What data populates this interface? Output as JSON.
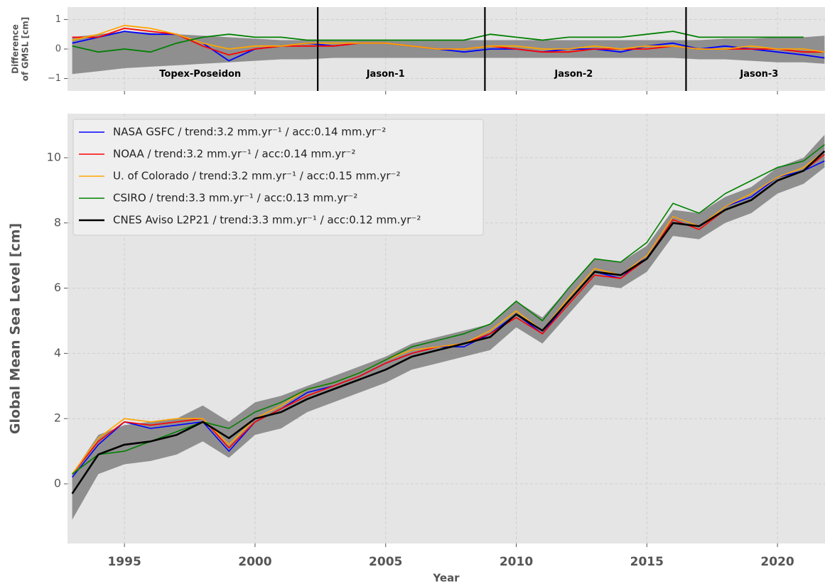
{
  "chart_data": [
    {
      "type": "line",
      "ylabel": [
        "Difference",
        "of GMSL [cm]"
      ],
      "x": [
        1993,
        1994,
        1995,
        1996,
        1997,
        1998,
        1999,
        2000,
        2001,
        2002,
        2003,
        2004,
        2005,
        2006,
        2007,
        2008,
        2009,
        2010,
        2011,
        2012,
        2013,
        2014,
        2015,
        2016,
        2017,
        2018,
        2019,
        2020,
        2021,
        2021.8
      ],
      "xlim": [
        1992.82,
        2021.82
      ],
      "xticks": [
        1995,
        2000,
        2005,
        2010,
        2015,
        2020
      ],
      "xtick_labels": false,
      "ylim": [
        -1.42,
        1.42
      ],
      "yticks": [
        {
          "value": -1,
          "label": "−1"
        },
        0,
        1
      ],
      "grid": true,
      "band": {
        "color": "#808080",
        "upper": [
          0.4,
          0.5,
          0.6,
          0.55,
          0.5,
          0.45,
          0.4,
          0.35,
          0.3,
          0.3,
          0.3,
          0.3,
          0.3,
          0.3,
          0.3,
          0.3,
          0.3,
          0.3,
          0.3,
          0.3,
          0.3,
          0.3,
          0.3,
          0.3,
          0.3,
          0.35,
          0.35,
          0.4,
          0.4,
          0.45
        ],
        "lower": [
          -0.85,
          -0.75,
          -0.65,
          -0.6,
          -0.55,
          -0.5,
          -0.45,
          -0.4,
          -0.35,
          -0.35,
          -0.3,
          -0.3,
          -0.3,
          -0.3,
          -0.3,
          -0.3,
          -0.3,
          -0.3,
          -0.3,
          -0.3,
          -0.3,
          -0.3,
          -0.3,
          -0.3,
          -0.35,
          -0.35,
          -0.4,
          -0.45,
          -0.45,
          -0.5
        ]
      },
      "series": [
        {
          "name": "NASA GSFC",
          "color": "#0000ff",
          "values": [
            0.2,
            0.4,
            0.6,
            0.5,
            0.5,
            0.2,
            -0.4,
            0.0,
            0.1,
            0.2,
            0.1,
            0.2,
            0.2,
            0.1,
            0.0,
            -0.1,
            0.0,
            0.0,
            -0.1,
            0.0,
            0.0,
            -0.1,
            0.1,
            0.2,
            0.0,
            0.1,
            0.0,
            -0.1,
            -0.2,
            -0.3
          ]
        },
        {
          "name": "NOAA",
          "color": "#ff0000",
          "values": [
            0.4,
            0.4,
            0.7,
            0.6,
            0.5,
            0.1,
            -0.2,
            0.0,
            0.1,
            0.1,
            0.1,
            0.2,
            0.2,
            0.1,
            0.0,
            0.0,
            0.1,
            0.0,
            -0.1,
            -0.1,
            0.0,
            0.0,
            0.0,
            0.1,
            0.0,
            0.0,
            0.0,
            0.0,
            -0.1,
            -0.1
          ]
        },
        {
          "name": "U. of Colorado",
          "color": "#ffa500",
          "values": [
            0.3,
            0.5,
            0.8,
            0.7,
            0.5,
            0.2,
            0.0,
            0.1,
            0.1,
            0.2,
            0.2,
            0.2,
            0.2,
            0.1,
            0.0,
            0.0,
            0.1,
            0.1,
            0.0,
            0.0,
            0.1,
            0.0,
            0.1,
            0.1,
            0.0,
            0.0,
            0.1,
            0.0,
            0.0,
            -0.1
          ]
        },
        {
          "name": "CSIRO",
          "color": "#008000",
          "values": [
            0.1,
            -0.1,
            0.0,
            -0.1,
            0.2,
            0.4,
            0.5,
            0.4,
            0.4,
            0.3,
            0.3,
            0.3,
            0.3,
            0.3,
            0.3,
            0.3,
            0.5,
            0.4,
            0.3,
            0.4,
            0.4,
            0.4,
            0.5,
            0.6,
            0.4,
            0.4,
            0.4,
            0.4,
            0.4,
            null
          ]
        }
      ],
      "vlines": [
        2002.4,
        2008.8,
        2016.5
      ],
      "annotations": [
        {
          "text": "Topex-Poseidon",
          "x": 1997.9,
          "y": -0.85
        },
        {
          "text": "Jason-1",
          "x": 2005.0,
          "y": -0.85
        },
        {
          "text": "Jason-2",
          "x": 2012.2,
          "y": -0.85
        },
        {
          "text": "Jason-3",
          "x": 2019.3,
          "y": -0.85
        }
      ]
    },
    {
      "type": "line",
      "ylabel": "Global Mean Sea Level  [cm]",
      "xlabel": "Year",
      "x": [
        1993,
        1994,
        1995,
        1996,
        1997,
        1998,
        1999,
        2000,
        2001,
        2002,
        2003,
        2004,
        2005,
        2006,
        2007,
        2008,
        2009,
        2010,
        2011,
        2012,
        2013,
        2014,
        2015,
        2016,
        2017,
        2018,
        2019,
        2020,
        2021,
        2021.8
      ],
      "xlim": [
        1992.82,
        2021.82
      ],
      "xticks": [
        1995,
        2000,
        2005,
        2010,
        2015,
        2020
      ],
      "xtick_labels": true,
      "ylim": [
        -1.83,
        11.35
      ],
      "yticks": [
        0,
        2,
        4,
        6,
        8,
        10
      ],
      "grid": true,
      "legend": "upper left",
      "band": {
        "color": "#808080",
        "upper": [
          0.3,
          1.5,
          1.8,
          1.9,
          2.0,
          2.4,
          1.9,
          2.5,
          2.7,
          3.0,
          3.3,
          3.6,
          3.9,
          4.3,
          4.5,
          4.7,
          4.9,
          5.6,
          5.1,
          6.0,
          6.9,
          6.8,
          7.3,
          8.4,
          8.3,
          8.8,
          9.1,
          9.7,
          10.0,
          10.7
        ],
        "lower": [
          -1.1,
          0.3,
          0.6,
          0.7,
          0.9,
          1.3,
          0.8,
          1.5,
          1.7,
          2.2,
          2.5,
          2.8,
          3.1,
          3.5,
          3.7,
          3.9,
          4.1,
          4.8,
          4.3,
          5.2,
          6.1,
          6.0,
          6.5,
          7.6,
          7.5,
          8.0,
          8.3,
          8.9,
          9.2,
          9.7
        ]
      },
      "series": [
        {
          "name": "NASA GSFC / trend:3.2 mm.yr⁻¹ / acc:0.14 mm.yr⁻²",
          "color": "#0000ff",
          "width": 1.6,
          "values": [
            0.2,
            1.2,
            1.9,
            1.7,
            1.8,
            1.9,
            1.0,
            1.9,
            2.3,
            2.8,
            3.0,
            3.3,
            3.7,
            4.0,
            4.2,
            4.2,
            4.6,
            5.2,
            4.6,
            5.6,
            6.5,
            6.3,
            7.0,
            8.2,
            7.9,
            8.5,
            8.8,
            9.4,
            9.6,
            9.9
          ]
        },
        {
          "name": "NOAA / trend:3.2 mm.yr⁻¹ / acc:0.14 mm.yr⁻²",
          "color": "#ff0000",
          "width": 1.6,
          "values": [
            0.3,
            1.3,
            1.9,
            1.8,
            1.9,
            2.0,
            1.1,
            1.9,
            2.3,
            2.7,
            3.0,
            3.3,
            3.7,
            4.0,
            4.2,
            4.3,
            4.6,
            5.1,
            4.6,
            5.5,
            6.4,
            6.3,
            6.9,
            8.1,
            7.8,
            8.4,
            8.7,
            9.3,
            9.6,
            10.1
          ]
        },
        {
          "name": "U. of Colorado / trend:3.2 mm.yr⁻¹ / acc:0.15 mm.yr⁻²",
          "color": "#ffa500",
          "width": 1.6,
          "values": [
            0.3,
            1.4,
            2.0,
            1.9,
            2.0,
            2.0,
            1.2,
            2.0,
            2.4,
            2.9,
            3.1,
            3.4,
            3.8,
            4.1,
            4.2,
            4.3,
            4.7,
            5.3,
            4.7,
            5.7,
            6.6,
            6.4,
            7.0,
            8.2,
            7.9,
            8.5,
            8.9,
            9.4,
            9.7,
            10.2
          ]
        },
        {
          "name": "CSIRO / trend:3.3 mm.yr⁻¹ / acc:0.13 mm.yr⁻²",
          "color": "#008000",
          "width": 1.6,
          "values": [
            0.3,
            0.9,
            1.0,
            1.3,
            1.6,
            1.9,
            1.7,
            2.2,
            2.5,
            2.9,
            3.1,
            3.4,
            3.8,
            4.2,
            4.4,
            4.6,
            4.9,
            5.6,
            5.0,
            6.0,
            6.9,
            6.8,
            7.4,
            8.6,
            8.3,
            8.9,
            9.3,
            9.7,
            9.9,
            10.4
          ]
        },
        {
          "name": "CNES Aviso L2P21 / trend:3.3 mm.yr⁻¹ / acc:0.12 mm.yr⁻²",
          "color": "#000000",
          "width": 2.6,
          "values": [
            -0.3,
            0.9,
            1.2,
            1.3,
            1.5,
            1.9,
            1.4,
            2.0,
            2.2,
            2.6,
            2.9,
            3.2,
            3.5,
            3.9,
            4.1,
            4.3,
            4.5,
            5.2,
            4.7,
            5.6,
            6.5,
            6.4,
            6.9,
            8.0,
            7.9,
            8.4,
            8.7,
            9.3,
            9.6,
            10.2
          ]
        }
      ]
    }
  ]
}
